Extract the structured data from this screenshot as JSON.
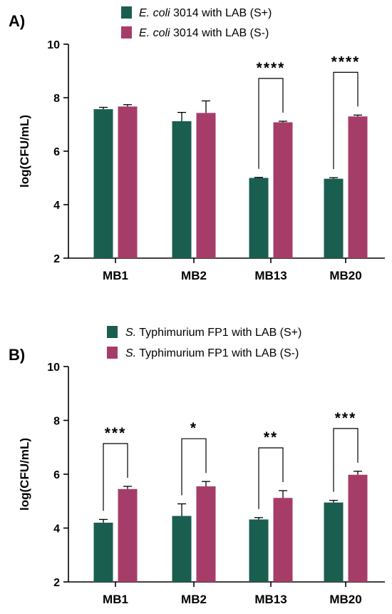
{
  "chart_data": [
    {
      "panel": "A)",
      "type": "bar",
      "ylabel": "log(CFU/mL)",
      "ylim": [
        2,
        10
      ],
      "yticks": [
        "2",
        "4",
        "6",
        "8",
        "10"
      ],
      "categories": [
        "MB1",
        "MB2",
        "MB13",
        "MB20"
      ],
      "series": [
        {
          "italic": "E. coli",
          "rest": " 3014 with LAB (S+)",
          "color": "#1a5e4f",
          "values": [
            7.57,
            7.12,
            5.0,
            4.97
          ],
          "errors": [
            0.07,
            0.33,
            0.02,
            0.04
          ]
        },
        {
          "italic": "E. coli",
          "rest": " 3014 with LAB (S-)",
          "color": "#a63d68",
          "values": [
            7.67,
            7.43,
            7.08,
            7.3
          ],
          "errors": [
            0.07,
            0.45,
            0.04,
            0.05
          ]
        }
      ],
      "significance": [
        "",
        "",
        "****",
        "****"
      ]
    },
    {
      "panel": "B)",
      "type": "bar",
      "ylabel": "log(CFU/mL)",
      "ylim": [
        2,
        10
      ],
      "yticks": [
        "2",
        "4",
        "6",
        "8",
        "10"
      ],
      "categories": [
        "MB1",
        "MB2",
        "MB13",
        "MB20"
      ],
      "series": [
        {
          "italic": "S.",
          "rest": " Typhimurium FP1 with LAB (S+)",
          "color": "#1a5e4f",
          "values": [
            4.2,
            4.45,
            4.32,
            4.95
          ],
          "errors": [
            0.12,
            0.45,
            0.07,
            0.08
          ]
        },
        {
          "italic": "S.",
          "rest": " Typhimurium FP1 with LAB (S-)",
          "color": "#a63d68",
          "values": [
            5.45,
            5.55,
            5.12,
            5.98
          ],
          "errors": [
            0.1,
            0.18,
            0.27,
            0.13
          ]
        }
      ],
      "significance": [
        "***",
        "*",
        "**",
        "***"
      ]
    }
  ]
}
